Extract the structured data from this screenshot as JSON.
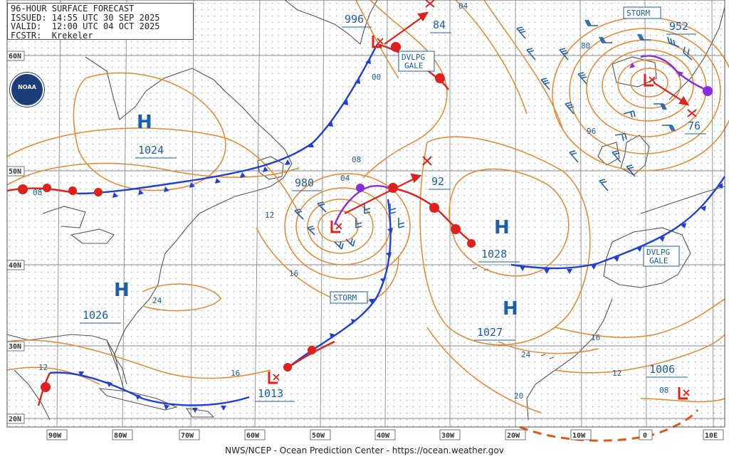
{
  "header": {
    "line1": "96-HOUR SURFACE FORECAST",
    "line2": "ISSUED: 14:55 UTC 30 SEP 2025",
    "line3": "VALID:  12:00 UTC 04 OCT 2025",
    "line4": "FCSTR:  Krekeler"
  },
  "footer": "NWS/NCEP - Ocean Prediction Center - https://ocean.weather.gov",
  "logo_text": "NOAA",
  "colors": {
    "isobar": "#e8862a",
    "coast": "#555555",
    "cold_front": "#1f3fd8",
    "warm_front": "#e0201a",
    "occluded_front": "#8a2be2",
    "label": "#1a5fa8",
    "low": "#e0201a",
    "grid": "#9a9a9a",
    "wind_barb": "#2060b0"
  },
  "lat_labels": [
    "60N",
    "50N",
    "40N",
    "30N",
    "20N"
  ],
  "lon_labels": [
    "90W",
    "80W",
    "70W",
    "60W",
    "50W",
    "40W",
    "30W",
    "20W",
    "10W",
    "0",
    "10E"
  ],
  "highs": [
    {
      "label": "H",
      "value": "1024"
    },
    {
      "label": "H",
      "value": "1026"
    },
    {
      "label": "H",
      "value": "1028"
    },
    {
      "label": "H",
      "value": "1027"
    }
  ],
  "lows": [
    {
      "value": "996"
    },
    {
      "value": "980"
    },
    {
      "value": "1013"
    },
    {
      "value": "952"
    },
    {
      "value": "1006"
    }
  ],
  "future_pressures": [
    "84",
    "92",
    "76"
  ],
  "warnings": [
    "STORM",
    "DVLPG GALE",
    "STORM",
    "DVLPG GALE"
  ],
  "isobar_labels": [
    "04",
    "00",
    "08",
    "04",
    "08",
    "12",
    "16",
    "24",
    "12",
    "16",
    "24",
    "20",
    "16",
    "12",
    "08",
    "80",
    "96"
  ]
}
